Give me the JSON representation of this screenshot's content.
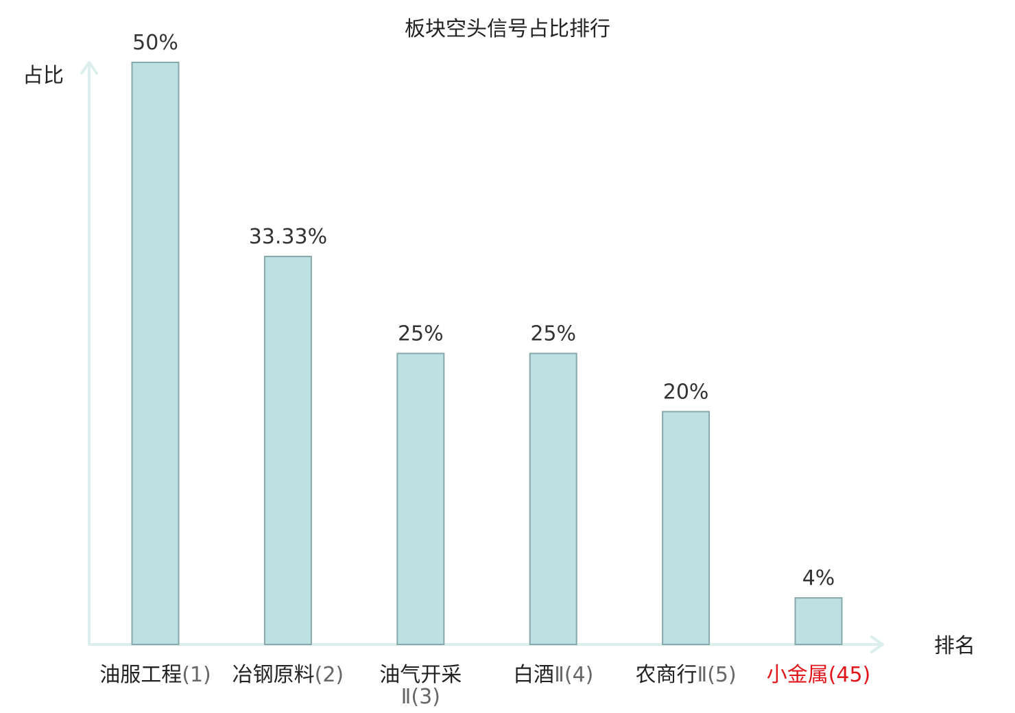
{
  "chart_data": {
    "type": "bar",
    "title": "板块空头信号占比排行",
    "xlabel": "排名",
    "ylabel": "占比",
    "ylim": [
      0,
      50
    ],
    "grid": false,
    "categories": [
      {
        "name": "油服工程",
        "rank": "(1)"
      },
      {
        "name": "冶钢原料",
        "rank": "(2)"
      },
      {
        "name": "油气开采",
        "rank": "Ⅱ(3)"
      },
      {
        "name": "白酒",
        "rank": "Ⅱ(4)"
      },
      {
        "name": "农商行",
        "rank": "Ⅱ(5)"
      },
      {
        "name": "小金属",
        "rank": "(45)"
      }
    ],
    "values": [
      50,
      33.33,
      25,
      25,
      20,
      4
    ],
    "value_labels": [
      "50%",
      "33.33%",
      "25%",
      "25%",
      "20%",
      "4%"
    ],
    "highlight_index": 5,
    "colors": {
      "bar_fill": "#bde0e2",
      "bar_stroke": "#86a8aa",
      "axis": "#dcefec",
      "text": "#222222",
      "highlight_text": "#e0161b"
    }
  }
}
